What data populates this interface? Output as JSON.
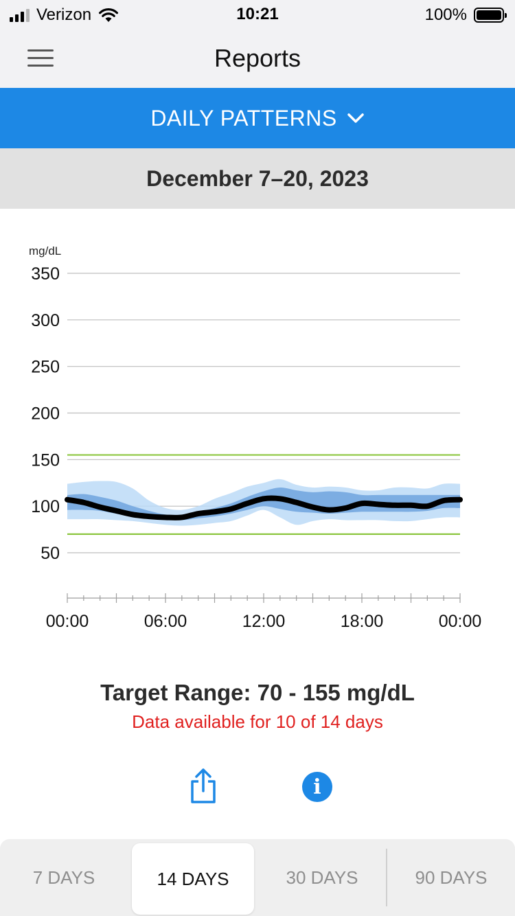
{
  "status_bar": {
    "carrier": "Verizon",
    "time": "10:21",
    "battery": "100%"
  },
  "nav": {
    "title": "Reports",
    "menu_icon": "hamburger-menu-icon"
  },
  "report_selector": {
    "label": "DAILY PATTERNS",
    "icon": "chevron-down-icon"
  },
  "date_range": "December 7–20, 2023",
  "chart_data": {
    "type": "area",
    "ylabel": "mg/dL",
    "ylim": [
      50,
      350
    ],
    "yticks": [
      "350",
      "300",
      "250",
      "200",
      "150",
      "100",
      "50"
    ],
    "xticks": [
      "00:00",
      "06:00",
      "12:00",
      "18:00",
      "00:00"
    ],
    "x_hours": [
      0,
      1,
      2,
      3,
      4,
      5,
      6,
      7,
      8,
      9,
      10,
      11,
      12,
      13,
      14,
      15,
      16,
      17,
      18,
      19,
      20,
      21,
      22,
      23,
      24
    ],
    "grid": true,
    "target_range": [
      70,
      155
    ],
    "colors": {
      "median": "#000000",
      "inner_band": "#6fa3de",
      "outer_band": "#bcdaf7",
      "target": "#8cc63f",
      "grid": "#bdbdbd"
    },
    "series": [
      {
        "name": "",
        "kind": "p10",
        "values": [
          86,
          86,
          86,
          85,
          84,
          82,
          80,
          79,
          80,
          82,
          84,
          90,
          96,
          88,
          80,
          84,
          86,
          85,
          85,
          85,
          84,
          84,
          86,
          88,
          88
        ]
      },
      {
        "name": "",
        "kind": "p25",
        "values": [
          96,
          96,
          95,
          92,
          90,
          87,
          86,
          85,
          87,
          89,
          92,
          96,
          100,
          97,
          94,
          93,
          92,
          93,
          94,
          94,
          94,
          94,
          95,
          98,
          98
        ]
      },
      {
        "name": "",
        "kind": "median",
        "values": [
          107,
          104,
          99,
          95,
          91,
          89,
          88,
          88,
          92,
          94,
          97,
          103,
          108,
          108,
          104,
          99,
          96,
          98,
          103,
          102,
          101,
          101,
          100,
          106,
          107
        ]
      },
      {
        "name": "",
        "kind": "p75",
        "values": [
          112,
          113,
          110,
          106,
          100,
          95,
          91,
          90,
          94,
          98,
          103,
          110,
          116,
          120,
          117,
          115,
          116,
          115,
          112,
          112,
          112,
          112,
          112,
          112,
          112
        ]
      },
      {
        "name": "",
        "kind": "p90",
        "values": [
          124,
          126,
          127,
          126,
          119,
          106,
          98,
          96,
          100,
          108,
          114,
          121,
          125,
          129,
          123,
          120,
          121,
          120,
          117,
          117,
          120,
          120,
          119,
          124,
          124
        ]
      }
    ]
  },
  "summary": {
    "target_range_text": "Target Range: 70 - 155 mg/dL",
    "data_availability": "Data available for 10 of 14 days"
  },
  "actions": {
    "share_icon": "share-icon",
    "info_icon": "info-icon",
    "info_glyph": "i"
  },
  "period_tabs": [
    {
      "label": "7 DAYS",
      "active": false
    },
    {
      "label": "14 DAYS",
      "active": true
    },
    {
      "label": "30 DAYS",
      "active": false
    },
    {
      "label": "90 DAYS",
      "active": false
    }
  ]
}
